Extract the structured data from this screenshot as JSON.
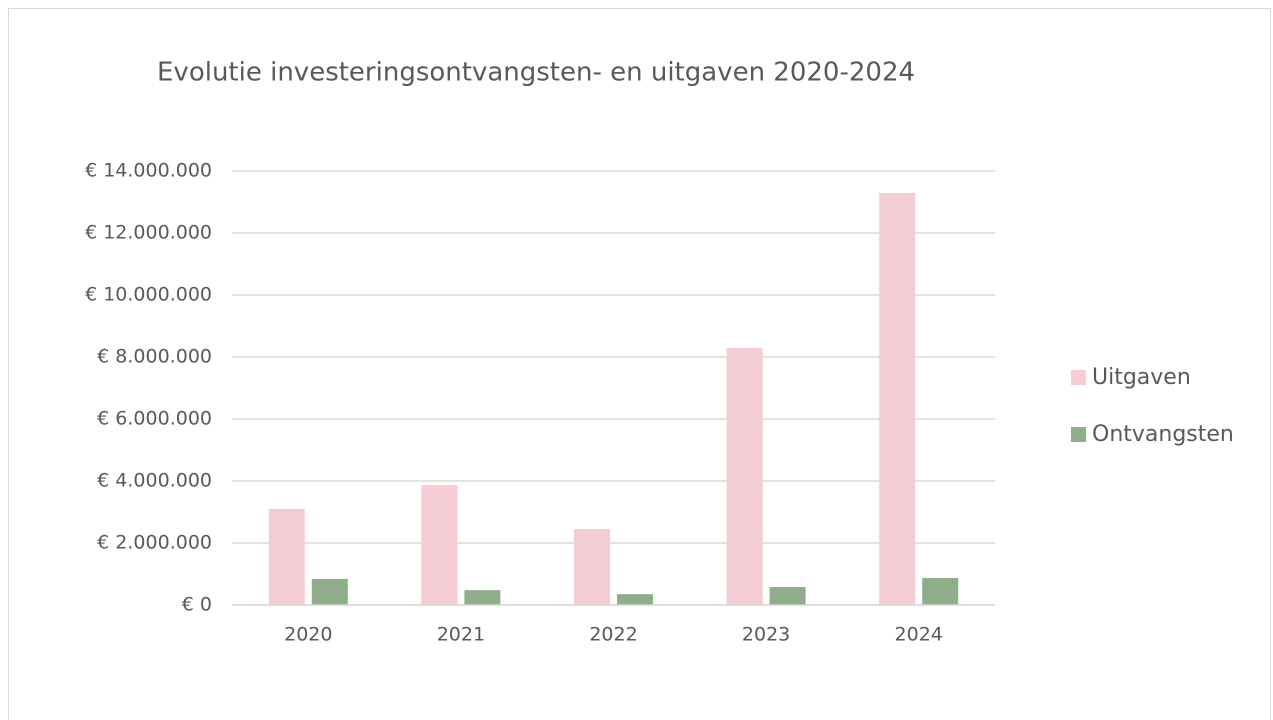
{
  "chart_data": {
    "type": "bar",
    "title": "Evolutie investeringsontvangsten- en uitgaven 2020-2024",
    "categories": [
      "2020",
      "2021",
      "2022",
      "2023",
      "2024"
    ],
    "series": [
      {
        "name": "Uitgaven",
        "color": "#f4cdd4",
        "values": [
          3100000,
          3870000,
          2450000,
          8290000,
          13290000
        ]
      },
      {
        "name": "Ontvangsten",
        "color": "#8fac8b",
        "values": [
          840000,
          480000,
          350000,
          580000,
          870000
        ]
      }
    ],
    "ylim": [
      0,
      14000000
    ],
    "yticks": [
      {
        "value": 0,
        "label": "€ 0"
      },
      {
        "value": 2000000,
        "label": "€ 2.000.000"
      },
      {
        "value": 4000000,
        "label": "€ 4.000.000"
      },
      {
        "value": 6000000,
        "label": "€ 6.000.000"
      },
      {
        "value": 8000000,
        "label": "€ 8.000.000"
      },
      {
        "value": 10000000,
        "label": "€ 10.000.000"
      },
      {
        "value": 12000000,
        "label": "€ 12.000.000"
      },
      {
        "value": 14000000,
        "label": "€ 14.000.000"
      }
    ],
    "grid": true,
    "legend": "right"
  }
}
